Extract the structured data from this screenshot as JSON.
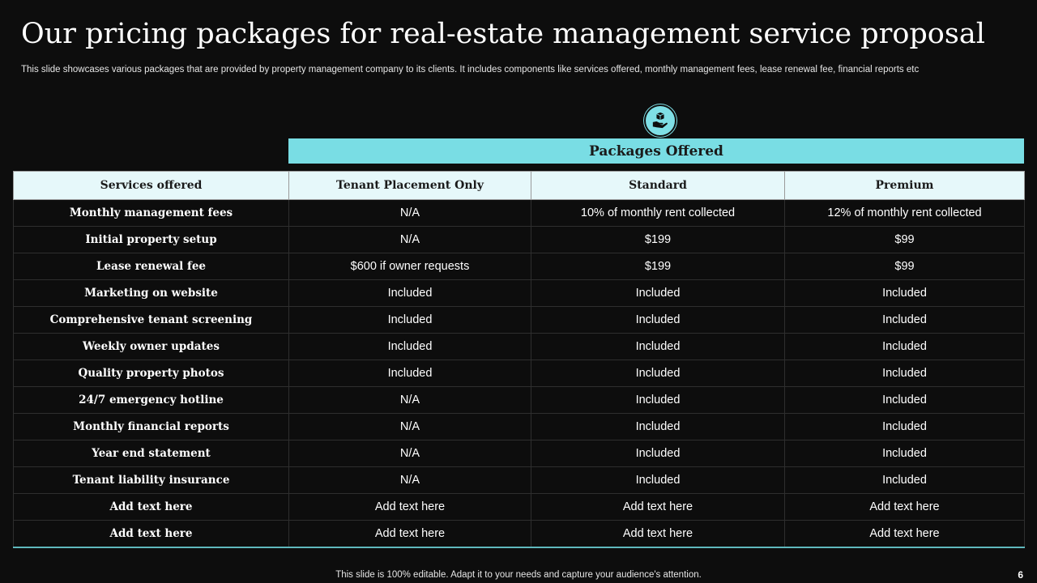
{
  "title": "Our pricing packages for real-estate management service proposal",
  "subtitle": "This slide showcases various packages that are provided by property management company to its clients. It includes components like services offered, monthly management fees, lease renewal fee, financial reports etc",
  "packages_banner": "Packages Offered",
  "icon": "package-hand-icon",
  "table": {
    "headers": [
      "Services offered",
      "Tenant Placement Only",
      "Standard",
      "Premium"
    ],
    "rows": [
      [
        "Monthly management fees",
        "N/A",
        "10% of monthly rent collected",
        "12% of monthly rent collected"
      ],
      [
        "Initial property setup",
        "N/A",
        "$199",
        "$99"
      ],
      [
        "Lease renewal fee",
        "$600 if owner requests",
        "$199",
        "$99"
      ],
      [
        "Marketing on website",
        "Included",
        "Included",
        "Included"
      ],
      [
        "Comprehensive tenant screening",
        "Included",
        "Included",
        "Included"
      ],
      [
        "Weekly owner updates",
        "Included",
        "Included",
        "Included"
      ],
      [
        "Quality property photos",
        "Included",
        "Included",
        "Included"
      ],
      [
        "24/7 emergency hotline",
        "N/A",
        "Included",
        "Included"
      ],
      [
        "Monthly financial reports",
        "N/A",
        "Included",
        "Included"
      ],
      [
        "Year end statement",
        "N/A",
        "Included",
        "Included"
      ],
      [
        "Tenant liability insurance",
        "N/A",
        "Included",
        "Included"
      ],
      [
        "Add text here",
        "Add text here",
        "Add text here",
        "Add text here"
      ],
      [
        "Add text here",
        "Add text here",
        "Add text here",
        "Add text here"
      ]
    ]
  },
  "footer": "This slide is 100% editable. Adapt it to your needs and capture your audience's attention.",
  "page_number": "6",
  "colors": {
    "background": "#0d0d0d",
    "accent": "#79dde4",
    "header_fill": "#e6f8fa"
  }
}
